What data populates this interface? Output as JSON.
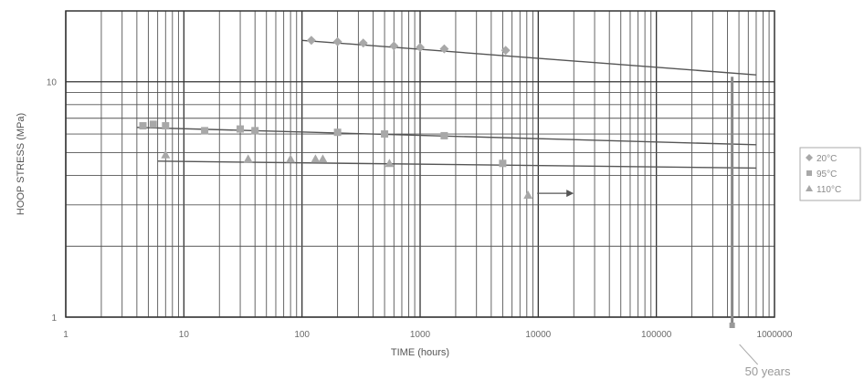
{
  "chart_data": {
    "type": "scatter",
    "title": "",
    "xlabel": "TIME (hours)",
    "ylabel": "HOOP STRESS (MPa)",
    "x_scale": "log",
    "y_scale": "log",
    "xlim": [
      1,
      1000000
    ],
    "ylim": [
      1,
      20
    ],
    "x_ticks": [
      {
        "value": 1,
        "label": "1"
      },
      {
        "value": 10,
        "label": "10"
      },
      {
        "value": 100,
        "label": "100"
      },
      {
        "value": 1000,
        "label": "1000"
      },
      {
        "value": 10000,
        "label": "10000"
      },
      {
        "value": 100000,
        "label": "100000"
      },
      {
        "value": 1000000,
        "label": "1000000"
      }
    ],
    "y_ticks": [
      {
        "value": 1,
        "label": "1"
      },
      {
        "value": 10,
        "label": "10"
      }
    ],
    "grid": true,
    "legend_position": "right",
    "series": [
      {
        "name": "20°C",
        "color": "#a8a8a8",
        "marker": "diamond",
        "points": [
          [
            120,
            15.0
          ],
          [
            200,
            14.8
          ],
          [
            330,
            14.6
          ],
          [
            600,
            14.2
          ],
          [
            1000,
            14.0
          ],
          [
            1600,
            13.8
          ],
          [
            5300,
            13.6
          ]
        ],
        "regression": [
          [
            100,
            15.0
          ],
          [
            700000,
            10.7
          ]
        ]
      },
      {
        "name": "95°C",
        "color": "#a8a8a8",
        "marker": "square",
        "points": [
          [
            4.5,
            6.5
          ],
          [
            5.5,
            6.6
          ],
          [
            7,
            6.5
          ],
          [
            15,
            6.2
          ],
          [
            30,
            6.3
          ],
          [
            40,
            6.2
          ],
          [
            200,
            6.1
          ],
          [
            500,
            6.0
          ],
          [
            1600,
            5.9
          ],
          [
            5000,
            4.5
          ]
        ],
        "regression": [
          [
            4,
            6.4
          ],
          [
            700000,
            5.4
          ]
        ]
      },
      {
        "name": "110°C",
        "color": "#a8a8a8",
        "marker": "triangle",
        "points": [
          [
            7,
            4.9
          ],
          [
            35,
            4.7
          ],
          [
            80,
            4.7
          ],
          [
            130,
            4.7
          ],
          [
            150,
            4.7
          ],
          [
            550,
            4.5
          ],
          [
            8200,
            3.3
          ]
        ],
        "regression": [
          [
            6,
            4.6
          ],
          [
            700000,
            4.3
          ]
        ]
      }
    ],
    "annotations": [
      {
        "text": "50 years",
        "x": 438000,
        "y": 1
      }
    ]
  }
}
